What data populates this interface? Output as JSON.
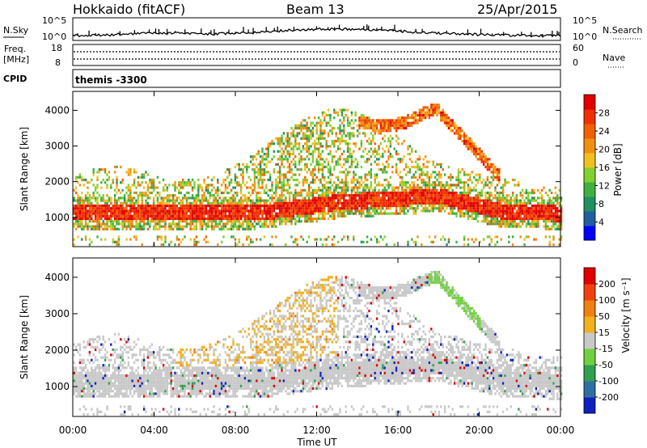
{
  "header": {
    "station": "Hokkaido (fitACF)",
    "beam": "Beam 13",
    "date": "25/Apr/2015"
  },
  "noise_panel": {
    "left_label": "N.Sky",
    "right_label": "N.Search",
    "left_ticks": [
      "10^5",
      "10^0"
    ],
    "right_ticks": [
      "10^5",
      "10^0"
    ]
  },
  "freq_panel": {
    "left_label_1": "Freq.",
    "left_label_2": "[MHz]",
    "left_ticks": [
      "18",
      "8"
    ],
    "right_label": "Nave",
    "right_ticks": [
      "60",
      "0"
    ]
  },
  "cpid_panel": {
    "label": "CPID",
    "value": "themis -3300"
  },
  "chart_data": [
    {
      "type": "heatmap",
      "name": "power",
      "ylabel": "Slant Range [km]",
      "xlabel": "Time UT",
      "xlim": [
        0,
        24
      ],
      "ylim": [
        180,
        4530
      ],
      "x_ticks": [
        "00:00",
        "04:00",
        "08:00",
        "12:00",
        "16:00",
        "20:00",
        "00:00"
      ],
      "x_tick_values": [
        0,
        4,
        8,
        12,
        16,
        20,
        24
      ],
      "y_ticks": [
        "1000",
        "2000",
        "3000",
        "4000"
      ],
      "y_tick_values": [
        1000,
        2000,
        3000,
        4000
      ],
      "colorbar_label": "Power [dB]",
      "colorbar_ticks": [
        "28",
        "24",
        "20",
        "16",
        "12",
        "8",
        "4"
      ],
      "colorbar_tick_values": [
        28,
        24,
        20,
        16,
        12,
        8,
        4
      ],
      "colorbar_range": [
        0,
        32
      ],
      "colors": [
        "#0000ff",
        "#2060a0",
        "#209060",
        "#40b040",
        "#80d030",
        "#f0c020",
        "#f09010",
        "#f06000",
        "#f03000",
        "#e00000"
      ]
    },
    {
      "type": "heatmap",
      "name": "velocity",
      "ylabel": "Slant Range [km]",
      "xlabel": "Time UT",
      "xlim": [
        0,
        24
      ],
      "ylim": [
        180,
        4530
      ],
      "x_ticks": [
        "00:00",
        "04:00",
        "08:00",
        "12:00",
        "16:00",
        "20:00",
        "00:00"
      ],
      "x_tick_values": [
        0,
        4,
        8,
        12,
        16,
        20,
        24
      ],
      "y_ticks": [
        "1000",
        "2000",
        "3000",
        "4000"
      ],
      "y_tick_values": [
        1000,
        2000,
        3000,
        4000
      ],
      "colorbar_label": "Velocity [m s⁻¹]",
      "colorbar_ticks": [
        "200",
        "100",
        "50",
        "15",
        "-15",
        "-50",
        "-100",
        "-200"
      ],
      "colorbar_tick_values": [
        200,
        100,
        50,
        15,
        -15,
        -50,
        -100,
        -200
      ],
      "colors": [
        "#1020c0",
        "#3070a0",
        "#30a050",
        "#70d040",
        "#c8c8c8",
        "#f0b020",
        "#f08010",
        "#f04010",
        "#e00000"
      ]
    }
  ]
}
